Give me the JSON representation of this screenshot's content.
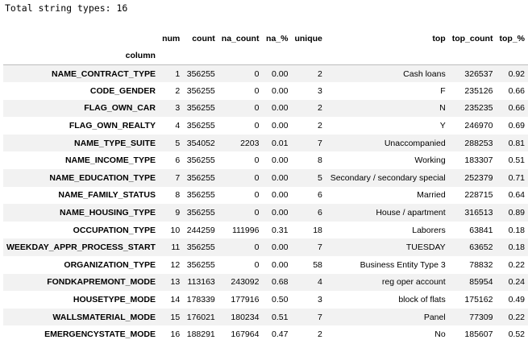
{
  "summary": "Total string types: 16",
  "table": {
    "columns": [
      "num",
      "count",
      "na_count",
      "na_%",
      "unique",
      "top",
      "top_count",
      "top_%"
    ],
    "index_name": "column",
    "rows": [
      {
        "name": "NAME_CONTRACT_TYPE",
        "cells": [
          "1",
          "356255",
          "0",
          "0.00",
          "2",
          "Cash loans",
          "326537",
          "0.92"
        ]
      },
      {
        "name": "CODE_GENDER",
        "cells": [
          "2",
          "356255",
          "0",
          "0.00",
          "3",
          "F",
          "235126",
          "0.66"
        ]
      },
      {
        "name": "FLAG_OWN_CAR",
        "cells": [
          "3",
          "356255",
          "0",
          "0.00",
          "2",
          "N",
          "235235",
          "0.66"
        ]
      },
      {
        "name": "FLAG_OWN_REALTY",
        "cells": [
          "4",
          "356255",
          "0",
          "0.00",
          "2",
          "Y",
          "246970",
          "0.69"
        ]
      },
      {
        "name": "NAME_TYPE_SUITE",
        "cells": [
          "5",
          "354052",
          "2203",
          "0.01",
          "7",
          "Unaccompanied",
          "288253",
          "0.81"
        ]
      },
      {
        "name": "NAME_INCOME_TYPE",
        "cells": [
          "6",
          "356255",
          "0",
          "0.00",
          "8",
          "Working",
          "183307",
          "0.51"
        ]
      },
      {
        "name": "NAME_EDUCATION_TYPE",
        "cells": [
          "7",
          "356255",
          "0",
          "0.00",
          "5",
          "Secondary / secondary special",
          "252379",
          "0.71"
        ]
      },
      {
        "name": "NAME_FAMILY_STATUS",
        "cells": [
          "8",
          "356255",
          "0",
          "0.00",
          "6",
          "Married",
          "228715",
          "0.64"
        ]
      },
      {
        "name": "NAME_HOUSING_TYPE",
        "cells": [
          "9",
          "356255",
          "0",
          "0.00",
          "6",
          "House / apartment",
          "316513",
          "0.89"
        ]
      },
      {
        "name": "OCCUPATION_TYPE",
        "cells": [
          "10",
          "244259",
          "111996",
          "0.31",
          "18",
          "Laborers",
          "63841",
          "0.18"
        ]
      },
      {
        "name": "WEEKDAY_APPR_PROCESS_START",
        "cells": [
          "11",
          "356255",
          "0",
          "0.00",
          "7",
          "TUESDAY",
          "63652",
          "0.18"
        ]
      },
      {
        "name": "ORGANIZATION_TYPE",
        "cells": [
          "12",
          "356255",
          "0",
          "0.00",
          "58",
          "Business Entity Type 3",
          "78832",
          "0.22"
        ]
      },
      {
        "name": "FONDKAPREMONT_MODE",
        "cells": [
          "13",
          "113163",
          "243092",
          "0.68",
          "4",
          "reg oper account",
          "85954",
          "0.24"
        ]
      },
      {
        "name": "HOUSETYPE_MODE",
        "cells": [
          "14",
          "178339",
          "177916",
          "0.50",
          "3",
          "block of flats",
          "175162",
          "0.49"
        ]
      },
      {
        "name": "WALLSMATERIAL_MODE",
        "cells": [
          "15",
          "176021",
          "180234",
          "0.51",
          "7",
          "Panel",
          "77309",
          "0.22"
        ]
      },
      {
        "name": "EMERGENCYSTATE_MODE",
        "cells": [
          "16",
          "188291",
          "167964",
          "0.47",
          "2",
          "No",
          "185607",
          "0.52"
        ]
      }
    ]
  }
}
